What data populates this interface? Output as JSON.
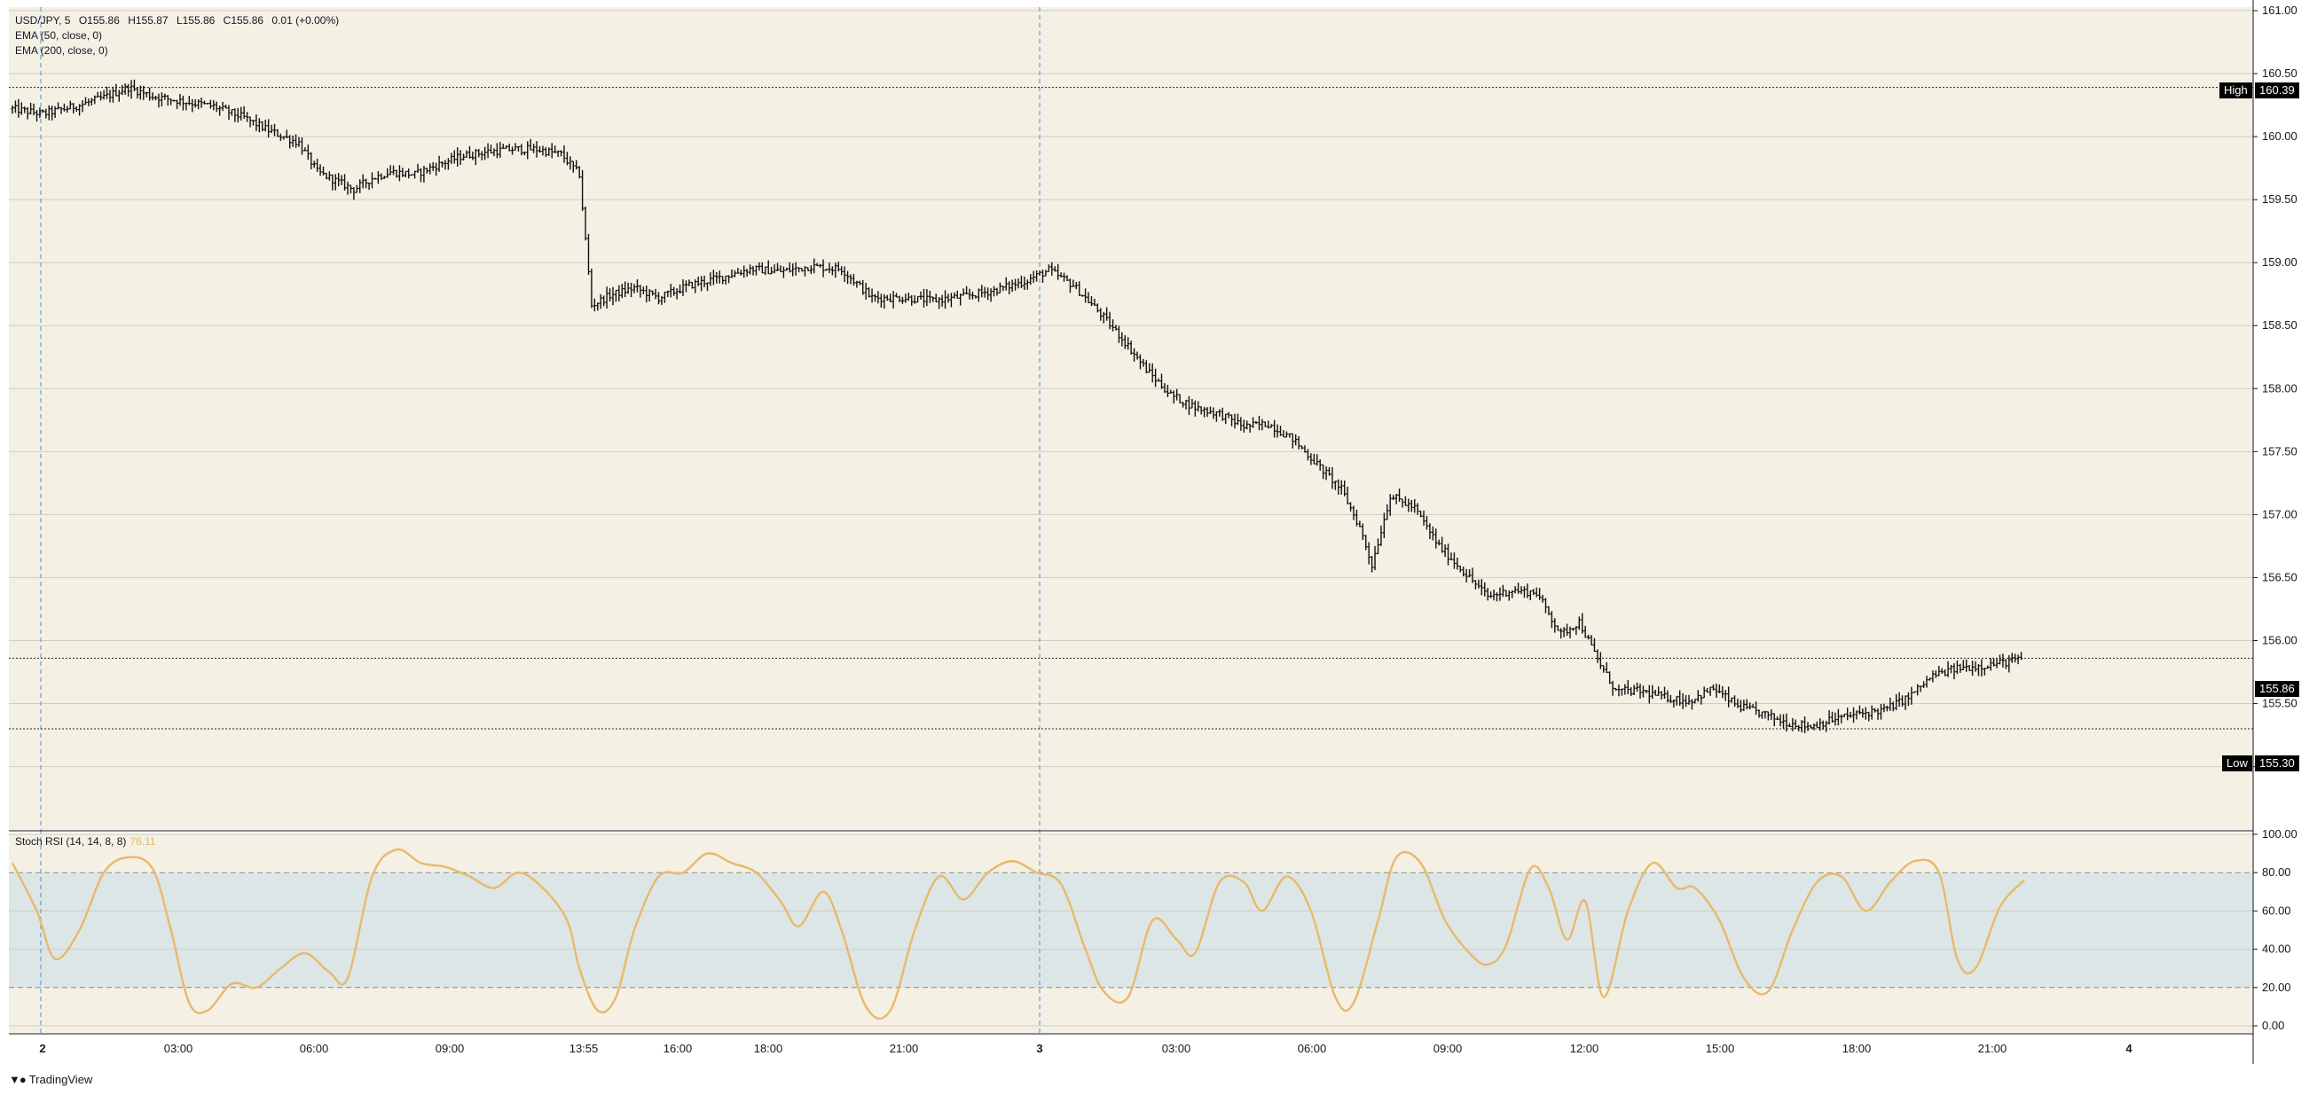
{
  "legend": {
    "symbol": "USD/JPY, 5",
    "open": "O155.86",
    "high": "H155.87",
    "low": "L155.86",
    "close": "C155.86",
    "change": "0.01 (+0.00%)",
    "ema1": "EMA (50, close, 0)",
    "ema2": "EMA (200, close, 0)"
  },
  "stoch_legend": {
    "label": "Stoch RSI (14, 14, 8, 8)",
    "value": "76.11"
  },
  "tags": {
    "high_label": "High",
    "high_value": "160.39",
    "low_label": "Low",
    "low_value": "155.30",
    "last_value": "155.86"
  },
  "footer": {
    "brand": "TradingView",
    "logo": "tradingview-logo-icon"
  },
  "colors": {
    "bg": "#f4f0e4",
    "grid": "#cfccc2",
    "candle": "#111111",
    "stoch": "#e8b96a",
    "stoch_band": "#dde6e6",
    "session_line": "#4a90d9",
    "axis_text": "#131722"
  },
  "chart_data": [
    {
      "type": "candlestick",
      "title": "USD/JPY, 5",
      "ylim": [
        154.8,
        161.0
      ],
      "y_ticks": [
        "161.00",
        "160.50",
        "160.00",
        "159.50",
        "159.00",
        "158.50",
        "158.00",
        "157.50",
        "157.00",
        "156.50",
        "156.00",
        "155.50",
        "155.00"
      ],
      "x_ticks": [
        "2",
        "03:00",
        "06:00",
        "09:00",
        "13:55",
        "16:00",
        "18:00",
        "21:00",
        "3",
        "03:00",
        "06:00",
        "09:00",
        "12:00",
        "15:00",
        "18:00",
        "21:00",
        "4"
      ],
      "reference_lines": {
        "high": 160.39,
        "low": 155.3,
        "last": 155.86
      },
      "close_path": [
        [
          0,
          160.22
        ],
        [
          10,
          160.18
        ],
        [
          22,
          160.25
        ],
        [
          30,
          160.31
        ],
        [
          38,
          160.39
        ],
        [
          46,
          160.32
        ],
        [
          56,
          160.28
        ],
        [
          66,
          160.24
        ],
        [
          76,
          160.15
        ],
        [
          84,
          160.05
        ],
        [
          94,
          159.95
        ],
        [
          100,
          159.72
        ],
        [
          106,
          159.65
        ],
        [
          112,
          159.58
        ],
        [
          118,
          159.67
        ],
        [
          124,
          159.72
        ],
        [
          132,
          159.7
        ],
        [
          140,
          159.78
        ],
        [
          148,
          159.85
        ],
        [
          156,
          159.88
        ],
        [
          164,
          159.9
        ],
        [
          172,
          159.9
        ],
        [
          180,
          159.86
        ],
        [
          186,
          159.7
        ],
        [
          190,
          158.66
        ],
        [
          196,
          158.74
        ],
        [
          204,
          158.8
        ],
        [
          212,
          158.72
        ],
        [
          222,
          158.82
        ],
        [
          232,
          158.88
        ],
        [
          242,
          158.95
        ],
        [
          252,
          158.93
        ],
        [
          262,
          158.97
        ],
        [
          272,
          158.95
        ],
        [
          282,
          158.72
        ],
        [
          292,
          158.72
        ],
        [
          302,
          158.7
        ],
        [
          312,
          158.73
        ],
        [
          322,
          158.78
        ],
        [
          332,
          158.85
        ],
        [
          340,
          158.94
        ],
        [
          348,
          158.82
        ],
        [
          356,
          158.62
        ],
        [
          364,
          158.4
        ],
        [
          372,
          158.15
        ],
        [
          380,
          157.95
        ],
        [
          388,
          157.85
        ],
        [
          396,
          157.8
        ],
        [
          404,
          157.7
        ],
        [
          412,
          157.72
        ],
        [
          420,
          157.6
        ],
        [
          428,
          157.4
        ],
        [
          436,
          157.2
        ],
        [
          442,
          156.9
        ],
        [
          446,
          156.6
        ],
        [
          452,
          157.15
        ],
        [
          460,
          157.05
        ],
        [
          468,
          156.75
        ],
        [
          476,
          156.55
        ],
        [
          484,
          156.35
        ],
        [
          492,
          156.4
        ],
        [
          500,
          156.38
        ],
        [
          508,
          156.05
        ],
        [
          514,
          156.15
        ],
        [
          520,
          155.85
        ],
        [
          526,
          155.6
        ],
        [
          534,
          155.6
        ],
        [
          542,
          155.55
        ],
        [
          550,
          155.52
        ],
        [
          558,
          155.62
        ],
        [
          566,
          155.48
        ],
        [
          574,
          155.42
        ],
        [
          582,
          155.35
        ],
        [
          590,
          155.32
        ],
        [
          598,
          155.38
        ],
        [
          606,
          155.42
        ],
        [
          614,
          155.45
        ],
        [
          622,
          155.55
        ],
        [
          630,
          155.72
        ],
        [
          638,
          155.78
        ],
        [
          646,
          155.8
        ],
        [
          654,
          155.83
        ],
        [
          660,
          155.86
        ]
      ],
      "bar_count": 660
    },
    {
      "type": "line",
      "title": "Stoch RSI (14, 14, 8, 8)",
      "ylim": [
        0,
        100
      ],
      "y_ticks": [
        "100.00",
        "80.00",
        "60.00",
        "40.00",
        "20.00",
        "0.00"
      ],
      "band": [
        20,
        80
      ],
      "series": [
        {
          "name": "Stoch RSI",
          "last": 76.11,
          "values": [
            [
              0,
              85
            ],
            [
              8,
              60
            ],
            [
              14,
              35
            ],
            [
              22,
              50
            ],
            [
              30,
              80
            ],
            [
              38,
              88
            ],
            [
              46,
              82
            ],
            [
              52,
              50
            ],
            [
              58,
              12
            ],
            [
              64,
              8
            ],
            [
              72,
              22
            ],
            [
              80,
              20
            ],
            [
              88,
              30
            ],
            [
              96,
              38
            ],
            [
              104,
              28
            ],
            [
              110,
              25
            ],
            [
              118,
              78
            ],
            [
              126,
              92
            ],
            [
              134,
              85
            ],
            [
              142,
              83
            ],
            [
              150,
              78
            ],
            [
              158,
              72
            ],
            [
              166,
              80
            ],
            [
              174,
              72
            ],
            [
              182,
              55
            ],
            [
              186,
              30
            ],
            [
              192,
              8
            ],
            [
              198,
              15
            ],
            [
              204,
              50
            ],
            [
              212,
              78
            ],
            [
              220,
              80
            ],
            [
              228,
              90
            ],
            [
              236,
              85
            ],
            [
              244,
              80
            ],
            [
              252,
              65
            ],
            [
              258,
              52
            ],
            [
              266,
              70
            ],
            [
              272,
              50
            ],
            [
              280,
              10
            ],
            [
              288,
              8
            ],
            [
              296,
              50
            ],
            [
              304,
              78
            ],
            [
              312,
              66
            ],
            [
              320,
              80
            ],
            [
              328,
              86
            ],
            [
              336,
              80
            ],
            [
              344,
              74
            ],
            [
              352,
              40
            ],
            [
              358,
              18
            ],
            [
              366,
              15
            ],
            [
              374,
              55
            ],
            [
              382,
              45
            ],
            [
              388,
              38
            ],
            [
              396,
              75
            ],
            [
              404,
              75
            ],
            [
              410,
              60
            ],
            [
              418,
              78
            ],
            [
              426,
              60
            ],
            [
              434,
              15
            ],
            [
              440,
              12
            ],
            [
              448,
              55
            ],
            [
              454,
              88
            ],
            [
              462,
              85
            ],
            [
              470,
              55
            ],
            [
              478,
              38
            ],
            [
              484,
              32
            ],
            [
              490,
              42
            ],
            [
              498,
              82
            ],
            [
              504,
              72
            ],
            [
              510,
              45
            ],
            [
              516,
              65
            ],
            [
              522,
              15
            ],
            [
              530,
              60
            ],
            [
              538,
              85
            ],
            [
              546,
              72
            ],
            [
              552,
              72
            ],
            [
              560,
              55
            ],
            [
              568,
              25
            ],
            [
              576,
              18
            ],
            [
              584,
              50
            ],
            [
              592,
              75
            ],
            [
              600,
              78
            ],
            [
              608,
              60
            ],
            [
              616,
              75
            ],
            [
              624,
              86
            ],
            [
              632,
              80
            ],
            [
              638,
              35
            ],
            [
              644,
              30
            ],
            [
              652,
              62
            ],
            [
              660,
              76
            ]
          ]
        }
      ]
    }
  ]
}
